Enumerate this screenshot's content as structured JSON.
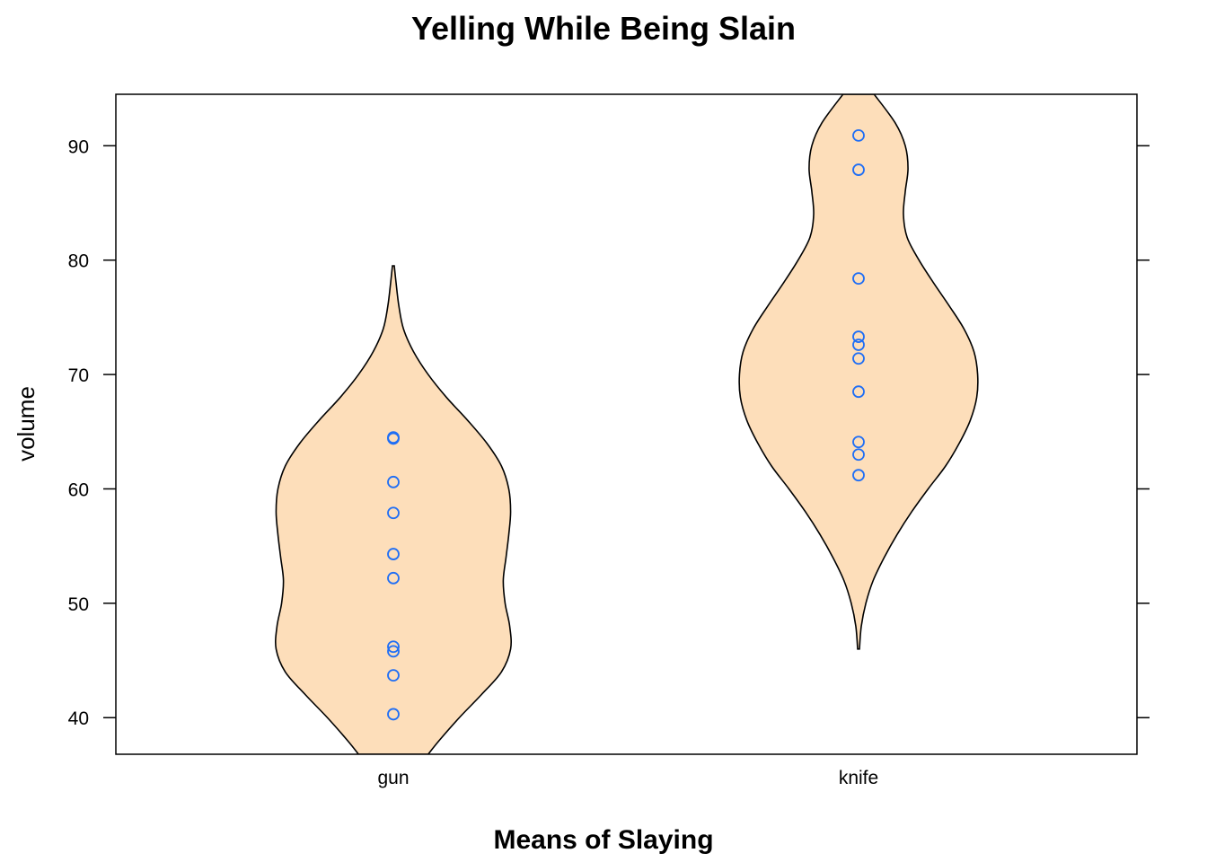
{
  "chart_data": {
    "type": "violin",
    "title": "Yelling While Being Slain",
    "xlabel": "Means of Slaying",
    "ylabel": "volume",
    "ylim": [
      36.8,
      94.5
    ],
    "yticks": [
      40,
      50,
      60,
      70,
      80,
      90
    ],
    "categories": [
      "gun",
      "knife"
    ],
    "fill_color": "#FDDEBA",
    "point_color": "#1F6EF5",
    "series": [
      {
        "category": "gun",
        "points": [
          64.5,
          64.4,
          60.6,
          57.9,
          54.3,
          52.2,
          46.2,
          45.8,
          43.7,
          40.3
        ],
        "density": {
          "y": [
            36.8,
            38,
            40,
            42,
            44,
            46,
            48,
            50,
            52,
            54,
            56,
            58,
            60,
            62,
            64,
            66,
            68,
            70,
            72,
            74,
            76,
            78,
            79.5
          ],
          "half_width": [
            3.8,
            5.0,
            7.2,
            9.6,
            11.8,
            12.8,
            12.7,
            12.2,
            12.0,
            12.3,
            12.6,
            12.8,
            12.6,
            11.8,
            10.2,
            8.1,
            5.8,
            3.8,
            2.2,
            1.1,
            0.6,
            0.3,
            0.1
          ]
        }
      },
      {
        "category": "knife",
        "points": [
          90.9,
          87.9,
          78.4,
          73.3,
          72.6,
          71.4,
          68.5,
          64.1,
          63.0,
          61.2
        ],
        "density": {
          "y": [
            46,
            48,
            50,
            52,
            54,
            56,
            58,
            60,
            62,
            64,
            66,
            68,
            70,
            72,
            74,
            76,
            78,
            80,
            82,
            84,
            86,
            88,
            90,
            92,
            94.5
          ],
          "half_width": [
            0.1,
            0.3,
            0.8,
            1.6,
            2.8,
            4.2,
            5.8,
            7.6,
            9.5,
            11.0,
            12.2,
            12.9,
            13.0,
            12.6,
            11.5,
            9.9,
            8.2,
            6.6,
            5.3,
            4.9,
            5.1,
            5.4,
            5.1,
            4.0,
            1.7
          ]
        }
      }
    ]
  }
}
